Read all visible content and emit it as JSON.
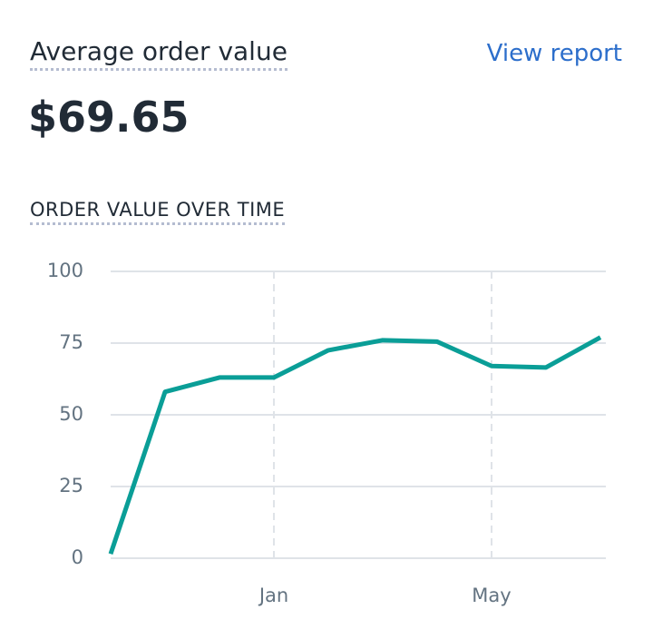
{
  "header": {
    "title": "Average order value",
    "link": "View report",
    "metric": "$69.65"
  },
  "chart_data": {
    "type": "line",
    "title": "ORDER VALUE OVER TIME",
    "categories": [
      null,
      null,
      null,
      "Jan",
      null,
      null,
      null,
      "May",
      null,
      null
    ],
    "series": [
      {
        "name": "Order value",
        "color": "#0a9e97",
        "values": [
          1.5,
          58,
          63,
          63,
          72.5,
          76,
          75.5,
          67,
          66.5,
          77
        ]
      }
    ],
    "ylim": [
      0,
      100
    ],
    "yticks": [
      0,
      25,
      50,
      75,
      100
    ],
    "grid": true
  }
}
